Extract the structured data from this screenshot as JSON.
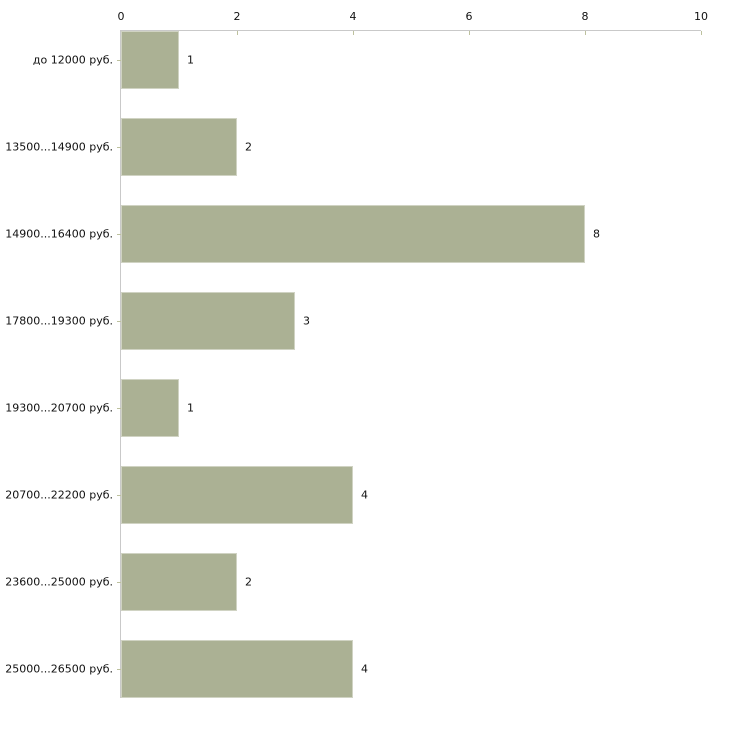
{
  "page": {
    "background": "#ffffff"
  },
  "chart_data": {
    "type": "bar",
    "orientation": "horizontal",
    "title": "",
    "xlabel": "",
    "ylabel": "",
    "grid": false,
    "legend": "none",
    "axis_position": "top",
    "xlim": [
      0,
      10
    ],
    "x_ticks": [
      "0",
      "2",
      "4",
      "6",
      "8",
      "10"
    ],
    "x_tick_values": [
      0,
      2,
      4,
      6,
      8,
      10
    ],
    "categories": [
      "до 12000 руб.",
      "13500...14900 руб.",
      "14900...16400 руб.",
      "17800...19300 руб.",
      "19300...20700 руб.",
      "20700...22200 руб.",
      "23600...25000 руб.",
      "25000...26500 руб."
    ],
    "values": [
      1,
      2,
      8,
      3,
      1,
      4,
      2,
      4
    ],
    "value_labels": [
      "1",
      "2",
      "8",
      "3",
      "1",
      "4",
      "2",
      "4"
    ],
    "colors": {
      "bar_fill": "#abb194",
      "bar_edge": "#d0d3c3",
      "axis_line": "#c9c9c9",
      "tick_mark": "#bdc19e",
      "text": "#111111",
      "background": "#ffffff"
    }
  }
}
